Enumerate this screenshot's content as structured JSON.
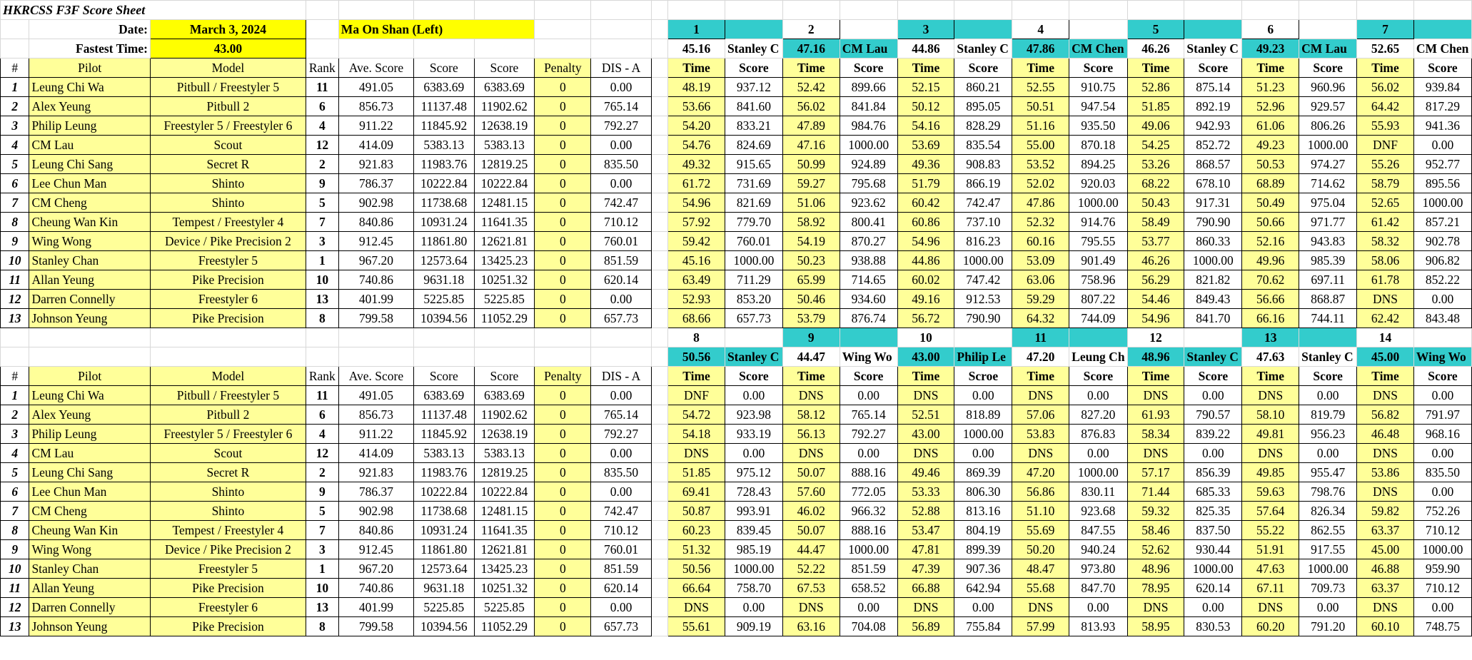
{
  "sheet": {
    "title": "HKRCSS F3F Score Sheet",
    "date_label": "Date:",
    "date_value": "March 3, 2024",
    "location": "Ma On Shan (Left)",
    "fastest_label": "Fastest Time:",
    "fastest_value": "43.00"
  },
  "headers": {
    "num": "#",
    "pilot": "Pilot",
    "model": "Model",
    "rank": "Rank",
    "ave": "Ave. Score",
    "score": "Score",
    "score2": "Score",
    "penalty": "Penalty",
    "dis": "DIS - A",
    "time": "Time",
    "round_score": "Score",
    "round_score_alt": "Scroe"
  },
  "pilots": [
    {
      "num": "1",
      "name": "Leung Chi Wa",
      "model": "Pitbull / Freestyler 5",
      "rank": "11",
      "ave": "491.05",
      "score": "6383.69",
      "score2": "6383.69",
      "penalty": "0",
      "dis": "0.00"
    },
    {
      "num": "2",
      "name": "Alex Yeung",
      "model": "Pitbull 2",
      "rank": "6",
      "ave": "856.73",
      "score": "11137.48",
      "score2": "11902.62",
      "penalty": "0",
      "dis": "765.14"
    },
    {
      "num": "3",
      "name": "Philip Leung",
      "model": "Freestyler 5 / Freestyler 6",
      "rank": "4",
      "ave": "911.22",
      "score": "11845.92",
      "score2": "12638.19",
      "penalty": "0",
      "dis": "792.27"
    },
    {
      "num": "4",
      "name": "CM Lau",
      "model": "Scout",
      "rank": "12",
      "ave": "414.09",
      "score": "5383.13",
      "score2": "5383.13",
      "penalty": "0",
      "dis": "0.00"
    },
    {
      "num": "5",
      "name": "Leung Chi Sang",
      "model": "Secret R",
      "rank": "2",
      "ave": "921.83",
      "score": "11983.76",
      "score2": "12819.25",
      "penalty": "0",
      "dis": "835.50"
    },
    {
      "num": "6",
      "name": "Lee Chun Man",
      "model": "Shinto",
      "rank": "9",
      "ave": "786.37",
      "score": "10222.84",
      "score2": "10222.84",
      "penalty": "0",
      "dis": "0.00"
    },
    {
      "num": "7",
      "name": "CM Cheng",
      "model": "Shinto",
      "rank": "5",
      "ave": "902.98",
      "score": "11738.68",
      "score2": "12481.15",
      "penalty": "0",
      "dis": "742.47"
    },
    {
      "num": "8",
      "name": "Cheung Wan Kin",
      "model": "Tempest / Freestyler 4",
      "rank": "7",
      "ave": "840.86",
      "score": "10931.24",
      "score2": "11641.35",
      "penalty": "0",
      "dis": "710.12"
    },
    {
      "num": "9",
      "name": "Wing Wong",
      "model": "Device / Pike Precision 2",
      "rank": "3",
      "ave": "912.45",
      "score": "11861.80",
      "score2": "12621.81",
      "penalty": "0",
      "dis": "760.01"
    },
    {
      "num": "10",
      "name": "Stanley Chan",
      "model": "Freestyler 5",
      "rank": "1",
      "ave": "967.20",
      "score": "12573.64",
      "score2": "13425.23",
      "penalty": "0",
      "dis": "851.59"
    },
    {
      "num": "11",
      "name": "Allan Yeung",
      "model": "Pike Precision",
      "rank": "10",
      "ave": "740.86",
      "score": "9631.18",
      "score2": "10251.32",
      "penalty": "0",
      "dis": "620.14"
    },
    {
      "num": "12",
      "name": "Darren Connelly",
      "model": "Freestyler 6",
      "rank": "13",
      "ave": "401.99",
      "score": "5225.85",
      "score2": "5225.85",
      "penalty": "0",
      "dis": "0.00"
    },
    {
      "num": "13",
      "name": "Johnson Yeung",
      "model": "Pike Precision",
      "rank": "8",
      "ave": "799.58",
      "score": "10394.56",
      "score2": "11052.29",
      "penalty": "0",
      "dis": "657.73"
    }
  ],
  "rounds_top": [
    {
      "num": "1",
      "best": "45.16",
      "winner": "Stanley C"
    },
    {
      "num": "2",
      "best": "47.16",
      "winner": "CM Lau"
    },
    {
      "num": "3",
      "best": "44.86",
      "winner": "Stanley C"
    },
    {
      "num": "4",
      "best": "47.86",
      "winner": "CM Chen"
    },
    {
      "num": "5",
      "best": "46.26",
      "winner": "Stanley C"
    },
    {
      "num": "6",
      "best": "49.23",
      "winner": "CM Lau"
    },
    {
      "num": "7",
      "best": "52.65",
      "winner": "CM Chen"
    }
  ],
  "rounds_bottom": [
    {
      "num": "8",
      "best": "50.56",
      "winner": "Stanley C"
    },
    {
      "num": "9",
      "best": "44.47",
      "winner": "Wing Wo"
    },
    {
      "num": "10",
      "best": "43.00",
      "winner": "Philip Le"
    },
    {
      "num": "11",
      "best": "47.20",
      "winner": "Leung Ch"
    },
    {
      "num": "12",
      "best": "48.96",
      "winner": "Stanley C"
    },
    {
      "num": "13",
      "best": "47.63",
      "winner": "Stanley C"
    },
    {
      "num": "14",
      "best": "45.00",
      "winner": "Wing Wo"
    }
  ],
  "results_top": [
    [
      [
        "48.19",
        "937.12"
      ],
      [
        "52.42",
        "899.66"
      ],
      [
        "52.15",
        "860.21"
      ],
      [
        "52.55",
        "910.75"
      ],
      [
        "52.86",
        "875.14"
      ],
      [
        "51.23",
        "960.96"
      ],
      [
        "56.02",
        "939.84"
      ]
    ],
    [
      [
        "53.66",
        "841.60"
      ],
      [
        "56.02",
        "841.84"
      ],
      [
        "50.12",
        "895.05"
      ],
      [
        "50.51",
        "947.54"
      ],
      [
        "51.85",
        "892.19"
      ],
      [
        "52.96",
        "929.57"
      ],
      [
        "64.42",
        "817.29"
      ]
    ],
    [
      [
        "54.20",
        "833.21"
      ],
      [
        "47.89",
        "984.76"
      ],
      [
        "54.16",
        "828.29"
      ],
      [
        "51.16",
        "935.50"
      ],
      [
        "49.06",
        "942.93"
      ],
      [
        "61.06",
        "806.26"
      ],
      [
        "55.93",
        "941.36"
      ]
    ],
    [
      [
        "54.76",
        "824.69"
      ],
      [
        "47.16",
        "1000.00"
      ],
      [
        "53.69",
        "835.54"
      ],
      [
        "55.00",
        "870.18"
      ],
      [
        "54.25",
        "852.72"
      ],
      [
        "49.23",
        "1000.00"
      ],
      [
        "DNF",
        "0.00"
      ]
    ],
    [
      [
        "49.32",
        "915.65"
      ],
      [
        "50.99",
        "924.89"
      ],
      [
        "49.36",
        "908.83"
      ],
      [
        "53.52",
        "894.25"
      ],
      [
        "53.26",
        "868.57"
      ],
      [
        "50.53",
        "974.27"
      ],
      [
        "55.26",
        "952.77"
      ]
    ],
    [
      [
        "61.72",
        "731.69"
      ],
      [
        "59.27",
        "795.68"
      ],
      [
        "51.79",
        "866.19"
      ],
      [
        "52.02",
        "920.03"
      ],
      [
        "68.22",
        "678.10"
      ],
      [
        "68.89",
        "714.62"
      ],
      [
        "58.79",
        "895.56"
      ]
    ],
    [
      [
        "54.96",
        "821.69"
      ],
      [
        "51.06",
        "923.62"
      ],
      [
        "60.42",
        "742.47"
      ],
      [
        "47.86",
        "1000.00"
      ],
      [
        "50.43",
        "917.31"
      ],
      [
        "50.49",
        "975.04"
      ],
      [
        "52.65",
        "1000.00"
      ]
    ],
    [
      [
        "57.92",
        "779.70"
      ],
      [
        "58.92",
        "800.41"
      ],
      [
        "60.86",
        "737.10"
      ],
      [
        "52.32",
        "914.76"
      ],
      [
        "58.49",
        "790.90"
      ],
      [
        "50.66",
        "971.77"
      ],
      [
        "61.42",
        "857.21"
      ]
    ],
    [
      [
        "59.42",
        "760.01"
      ],
      [
        "54.19",
        "870.27"
      ],
      [
        "54.96",
        "816.23"
      ],
      [
        "60.16",
        "795.55"
      ],
      [
        "53.77",
        "860.33"
      ],
      [
        "52.16",
        "943.83"
      ],
      [
        "58.32",
        "902.78"
      ]
    ],
    [
      [
        "45.16",
        "1000.00"
      ],
      [
        "50.23",
        "938.88"
      ],
      [
        "44.86",
        "1000.00"
      ],
      [
        "53.09",
        "901.49"
      ],
      [
        "46.26",
        "1000.00"
      ],
      [
        "49.96",
        "985.39"
      ],
      [
        "58.06",
        "906.82"
      ]
    ],
    [
      [
        "63.49",
        "711.29"
      ],
      [
        "65.99",
        "714.65"
      ],
      [
        "60.02",
        "747.42"
      ],
      [
        "63.06",
        "758.96"
      ],
      [
        "56.29",
        "821.82"
      ],
      [
        "70.62",
        "697.11"
      ],
      [
        "61.78",
        "852.22"
      ]
    ],
    [
      [
        "52.93",
        "853.20"
      ],
      [
        "50.46",
        "934.60"
      ],
      [
        "49.16",
        "912.53"
      ],
      [
        "59.29",
        "807.22"
      ],
      [
        "54.46",
        "849.43"
      ],
      [
        "56.66",
        "868.87"
      ],
      [
        "DNS",
        "0.00"
      ]
    ],
    [
      [
        "68.66",
        "657.73"
      ],
      [
        "53.79",
        "876.74"
      ],
      [
        "56.72",
        "790.90"
      ],
      [
        "64.32",
        "744.09"
      ],
      [
        "54.96",
        "841.70"
      ],
      [
        "66.16",
        "744.11"
      ],
      [
        "62.42",
        "843.48"
      ]
    ]
  ],
  "results_bottom": [
    [
      [
        "DNF",
        "0.00"
      ],
      [
        "DNS",
        "0.00"
      ],
      [
        "DNS",
        "0.00"
      ],
      [
        "DNS",
        "0.00"
      ],
      [
        "DNS",
        "0.00"
      ],
      [
        "DNS",
        "0.00"
      ],
      [
        "DNS",
        "0.00"
      ]
    ],
    [
      [
        "54.72",
        "923.98"
      ],
      [
        "58.12",
        "765.14"
      ],
      [
        "52.51",
        "818.89"
      ],
      [
        "57.06",
        "827.20"
      ],
      [
        "61.93",
        "790.57"
      ],
      [
        "58.10",
        "819.79"
      ],
      [
        "56.82",
        "791.97"
      ]
    ],
    [
      [
        "54.18",
        "933.19"
      ],
      [
        "56.13",
        "792.27"
      ],
      [
        "43.00",
        "1000.00"
      ],
      [
        "53.83",
        "876.83"
      ],
      [
        "58.34",
        "839.22"
      ],
      [
        "49.81",
        "956.23"
      ],
      [
        "46.48",
        "968.16"
      ]
    ],
    [
      [
        "DNS",
        "0.00"
      ],
      [
        "DNS",
        "0.00"
      ],
      [
        "DNS",
        "0.00"
      ],
      [
        "DNS",
        "0.00"
      ],
      [
        "DNS",
        "0.00"
      ],
      [
        "DNS",
        "0.00"
      ],
      [
        "DNS",
        "0.00"
      ]
    ],
    [
      [
        "51.85",
        "975.12"
      ],
      [
        "50.07",
        "888.16"
      ],
      [
        "49.46",
        "869.39"
      ],
      [
        "47.20",
        "1000.00"
      ],
      [
        "57.17",
        "856.39"
      ],
      [
        "49.85",
        "955.47"
      ],
      [
        "53.86",
        "835.50"
      ]
    ],
    [
      [
        "69.41",
        "728.43"
      ],
      [
        "57.60",
        "772.05"
      ],
      [
        "53.33",
        "806.30"
      ],
      [
        "56.86",
        "830.11"
      ],
      [
        "71.44",
        "685.33"
      ],
      [
        "59.63",
        "798.76"
      ],
      [
        "DNS",
        "0.00"
      ]
    ],
    [
      [
        "50.87",
        "993.91"
      ],
      [
        "46.02",
        "966.32"
      ],
      [
        "52.88",
        "813.16"
      ],
      [
        "51.10",
        "923.68"
      ],
      [
        "59.32",
        "825.35"
      ],
      [
        "57.64",
        "826.34"
      ],
      [
        "59.82",
        "752.26"
      ]
    ],
    [
      [
        "60.23",
        "839.45"
      ],
      [
        "50.07",
        "888.16"
      ],
      [
        "53.47",
        "804.19"
      ],
      [
        "55.69",
        "847.55"
      ],
      [
        "58.46",
        "837.50"
      ],
      [
        "55.22",
        "862.55"
      ],
      [
        "63.37",
        "710.12"
      ]
    ],
    [
      [
        "51.32",
        "985.19"
      ],
      [
        "44.47",
        "1000.00"
      ],
      [
        "47.81",
        "899.39"
      ],
      [
        "50.20",
        "940.24"
      ],
      [
        "52.62",
        "930.44"
      ],
      [
        "51.91",
        "917.55"
      ],
      [
        "45.00",
        "1000.00"
      ]
    ],
    [
      [
        "50.56",
        "1000.00"
      ],
      [
        "52.22",
        "851.59"
      ],
      [
        "47.39",
        "907.36"
      ],
      [
        "48.47",
        "973.80"
      ],
      [
        "48.96",
        "1000.00"
      ],
      [
        "47.63",
        "1000.00"
      ],
      [
        "46.88",
        "959.90"
      ]
    ],
    [
      [
        "66.64",
        "758.70"
      ],
      [
        "67.53",
        "658.52"
      ],
      [
        "66.88",
        "642.94"
      ],
      [
        "55.68",
        "847.70"
      ],
      [
        "78.95",
        "620.14"
      ],
      [
        "67.11",
        "709.73"
      ],
      [
        "63.37",
        "710.12"
      ]
    ],
    [
      [
        "DNS",
        "0.00"
      ],
      [
        "DNS",
        "0.00"
      ],
      [
        "DNS",
        "0.00"
      ],
      [
        "DNS",
        "0.00"
      ],
      [
        "DNS",
        "0.00"
      ],
      [
        "DNS",
        "0.00"
      ],
      [
        "DNS",
        "0.00"
      ]
    ],
    [
      [
        "55.61",
        "909.19"
      ],
      [
        "63.16",
        "704.08"
      ],
      [
        "56.89",
        "755.84"
      ],
      [
        "57.99",
        "813.93"
      ],
      [
        "58.95",
        "830.53"
      ],
      [
        "60.20",
        "791.20"
      ],
      [
        "60.10",
        "748.75"
      ]
    ]
  ]
}
